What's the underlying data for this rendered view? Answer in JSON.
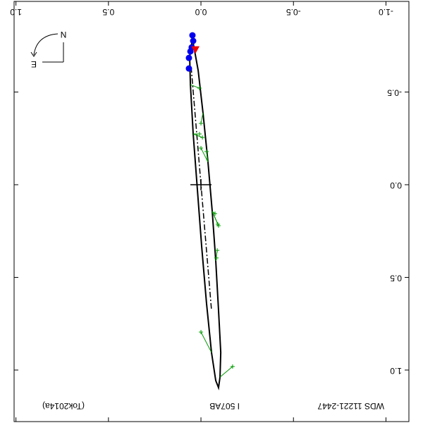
{
  "chart_data": {
    "type": "orbit",
    "title": "WDS 11221-2447",
    "subtitle": "I   507AB",
    "reference": "(Tok2014a)",
    "compass": {
      "north": "N",
      "east": "E"
    },
    "xlim": [
      -1.124,
      1.01
    ],
    "ylim": [
      -0.989,
      1.278
    ],
    "xticks": [
      {
        "value": -1,
        "label": "-1.0"
      },
      {
        "value": -0.5,
        "label": "-0.5"
      },
      {
        "value": 0,
        "label": "0.0"
      },
      {
        "value": 0.5,
        "label": "0.5"
      },
      {
        "value": 1,
        "label": "1.0"
      }
    ],
    "yticks": [
      {
        "value": -0.5,
        "label": "-0.5"
      },
      {
        "value": 0,
        "label": "0.0"
      },
      {
        "value": 0.5,
        "label": "0.5"
      },
      {
        "value": 1,
        "label": "1.0"
      }
    ],
    "orbit": {
      "color": "#000000",
      "x": [
        0.046,
        0.015,
        -0.011,
        -0.038,
        -0.061,
        -0.08,
        -0.095,
        -0.107,
        -0.103,
        -0.095,
        -0.08,
        -0.057,
        -0.03,
        -0.004,
        0.019,
        0.042,
        0.057,
        0.061,
        0.046
      ],
      "y": [
        -0.787,
        -0.616,
        -0.388,
        -0.122,
        0.144,
        0.411,
        0.677,
        0.905,
        1.038,
        1.095,
        1.057,
        0.905,
        0.639,
        0.335,
        0.03,
        -0.274,
        -0.54,
        -0.692,
        -0.787
      ]
    },
    "line_of_nodes": {
      "color": "#000000",
      "x": [
        0.053,
        -0.057
      ],
      "y": [
        -0.635,
        0.677
      ]
    },
    "primary": {
      "x": 0,
      "y": 0,
      "color": "#000000"
    },
    "series": [
      {
        "marker": "circle",
        "color": "#0000ee",
        "x": [
          0.046,
          0.042,
          0.05,
          0.057,
          0.065,
          0.065
        ],
        "y": [
          -0.806,
          -0.776,
          -0.741,
          -0.719,
          -0.684,
          -0.627
        ]
      },
      {
        "marker": "triangle",
        "color": "#ee0000",
        "x": [
          0.03
        ],
        "y": [
          -0.73
        ]
      },
      {
        "marker": "plus",
        "color": "#009900",
        "x": [
          0.008,
          0,
          0.008,
          -0.008,
          0,
          -0.03,
          -0.076,
          -0.091,
          -0.095,
          -0.088,
          -0.084,
          0,
          -0.171
        ],
        "y": [
          -0.521,
          -0.331,
          -0.274,
          -0.255,
          -0.198,
          -0.179,
          0.156,
          0.213,
          0.221,
          0.354,
          0.395,
          0.795,
          0.981
        ]
      }
    ]
  }
}
